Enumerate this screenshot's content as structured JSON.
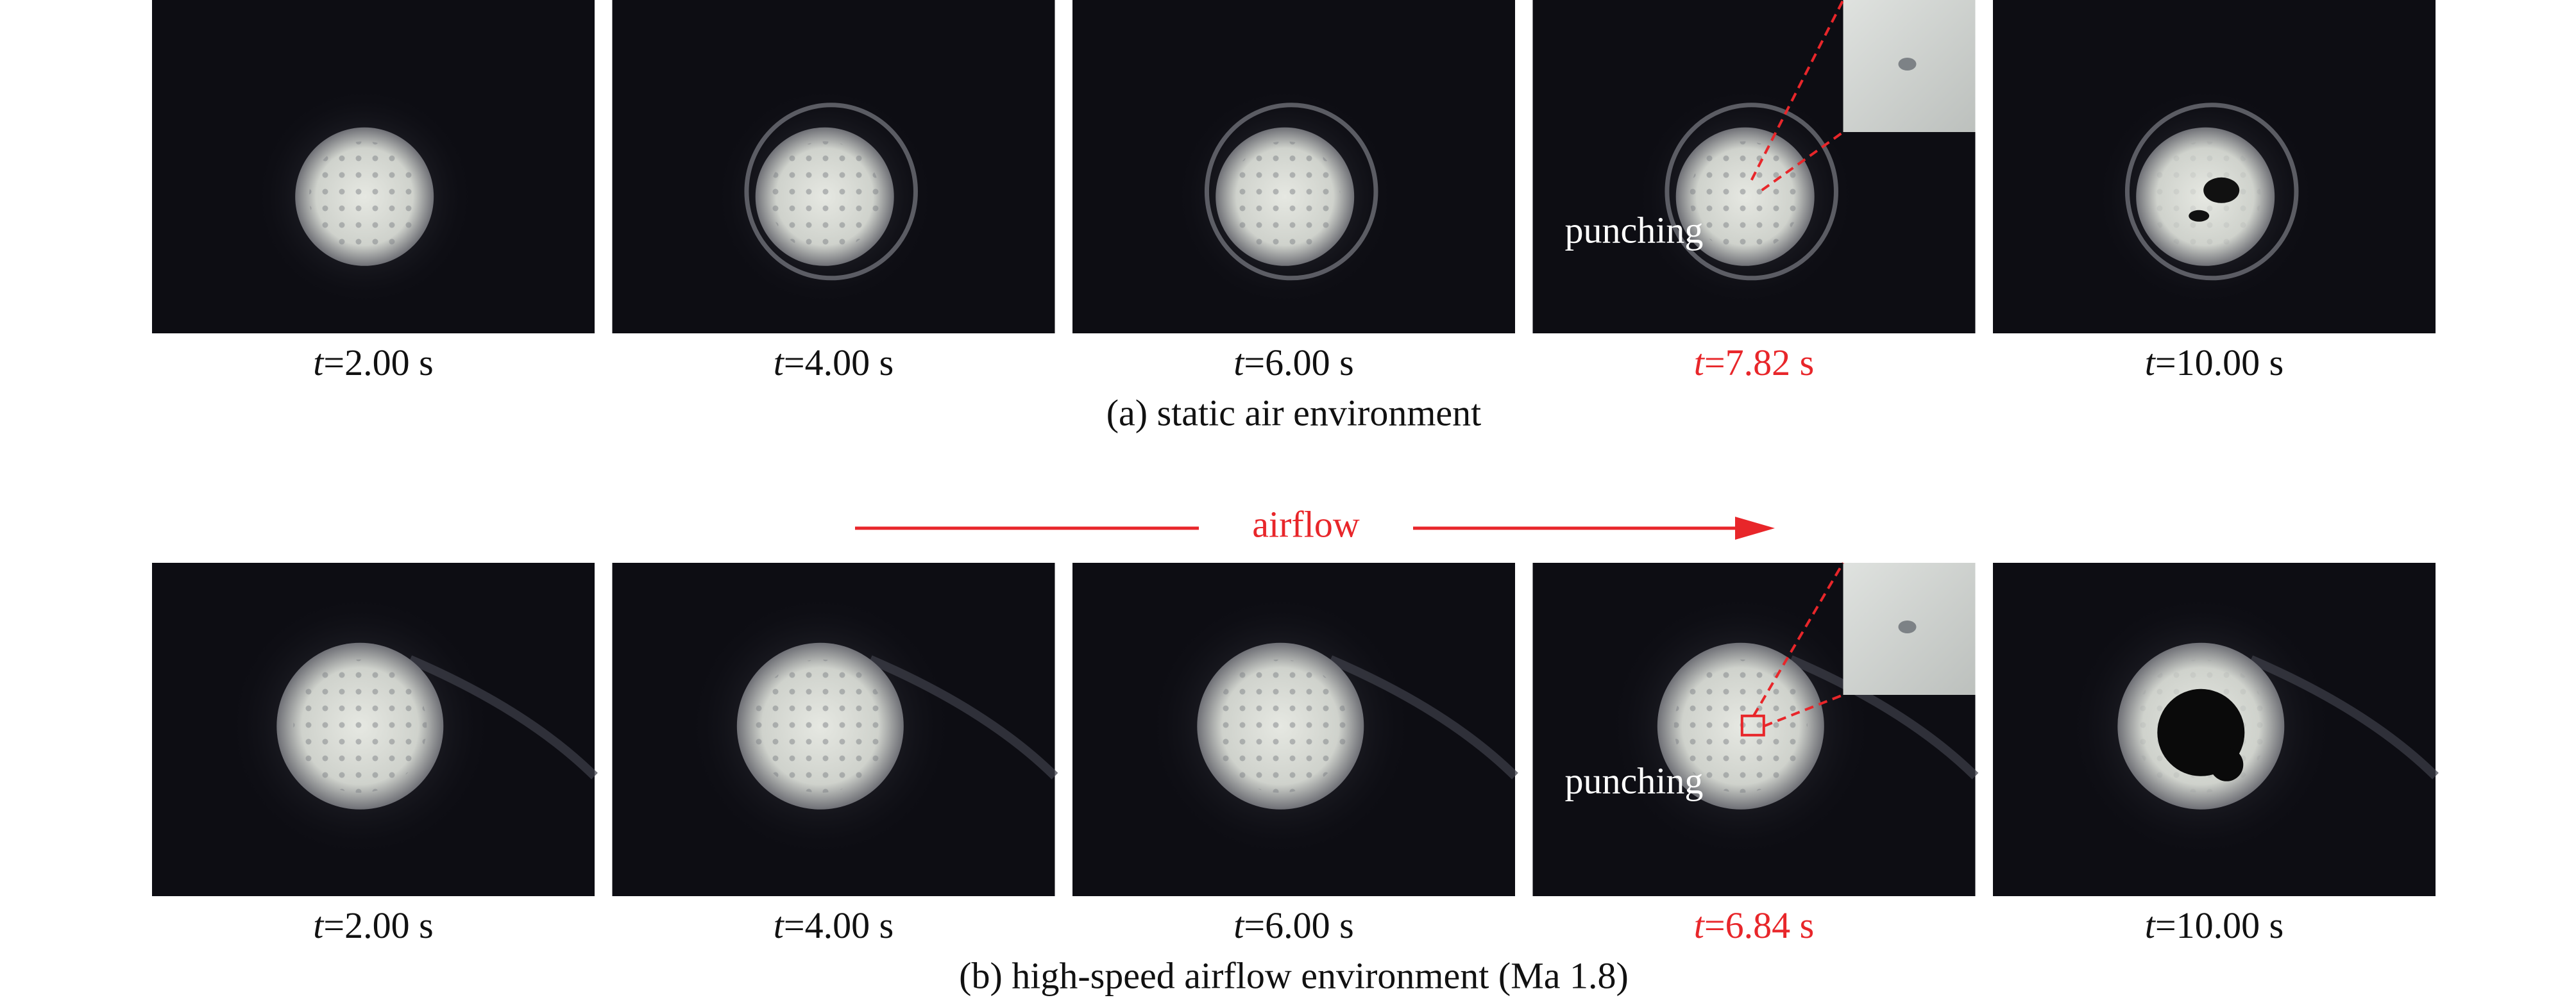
{
  "figure": {
    "rows": [
      {
        "caption": "(a) static air environment",
        "frames": [
          {
            "var": "t",
            "time": "=2.00 s"
          },
          {
            "var": "t",
            "time": "=4.00 s"
          },
          {
            "var": "t",
            "time": "=6.00 s"
          },
          {
            "var": "t",
            "time": "=7.82 s",
            "color": "#e8262a",
            "annotation": "punching"
          },
          {
            "var": "t",
            "time": "=10.00 s"
          }
        ]
      },
      {
        "caption": "(b) high-speed airflow environment (Ma 1.8)",
        "frames": [
          {
            "var": "t",
            "time": "=2.00 s"
          },
          {
            "var": "t",
            "time": "=4.00 s"
          },
          {
            "var": "t",
            "time": "=6.00 s"
          },
          {
            "var": "t",
            "time": "=6.84 s",
            "color": "#e8262a",
            "annotation": "punching"
          },
          {
            "var": "t",
            "time": "=10.00 s"
          }
        ]
      }
    ],
    "airflow_label": "airflow"
  }
}
